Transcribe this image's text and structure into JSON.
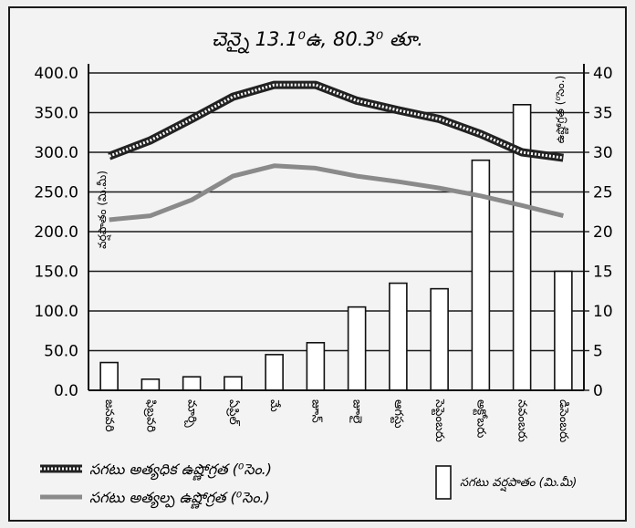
{
  "chart_data": {
    "type": "bar",
    "title": "చెన్నై 13.1⁰ఉ, 80.3⁰ తూ.",
    "categories": [
      "జనవరి",
      "ఫిబ్రవరి",
      "మార్చి",
      "ఏప్రిల్",
      "మే",
      "జూన్",
      "జూలై",
      "ఆగస్టు",
      "సెప్టెంబరు",
      "అక్టోబరు",
      "నవంబరు",
      "డిసెంబరు"
    ],
    "left_axis": {
      "label": "వర్షపాతం (మి.మీ)",
      "ylim": [
        0,
        400
      ],
      "ticks": [
        "0.0",
        "50.0",
        "100.0",
        "150.0",
        "200.0",
        "250.0",
        "300.0",
        "350.0",
        "400.0"
      ]
    },
    "right_axis": {
      "label": "ఉష్ణోగ్రత (⁰సెం.)",
      "ylim": [
        0,
        40
      ],
      "ticks": [
        "0",
        "5",
        "10",
        "15",
        "20",
        "25",
        "30",
        "35",
        "40"
      ]
    },
    "series": [
      {
        "name": "సగటు వర్షపాతం (మి.మీ)",
        "kind": "bar",
        "axis": "left",
        "values": [
          35,
          14,
          17,
          17,
          45,
          60,
          105,
          135,
          128,
          290,
          360,
          150
        ]
      },
      {
        "name": "సగటు అత్యధిక ఉష్ణోగ్రత (⁰సెం.)",
        "kind": "line",
        "axis": "right",
        "style": "hatched",
        "values": [
          29.5,
          31.5,
          34.2,
          37.0,
          38.5,
          38.5,
          36.5,
          35.3,
          34.2,
          32.3,
          30.0,
          29.3
        ]
      },
      {
        "name": "సగటు అత్యల్ప ఉష్ణోగ్రత (⁰సెం.)",
        "kind": "line",
        "axis": "right",
        "style": "grey",
        "values": [
          21.5,
          22.0,
          24.0,
          27.0,
          28.3,
          28.0,
          27.0,
          26.3,
          25.5,
          24.5,
          23.3,
          22.0
        ]
      }
    ],
    "grid": true,
    "legend_position": "bottom"
  },
  "colors": {
    "max_line": "#222222",
    "min_line": "#8a8a8a",
    "bar_fill": "#ffffff",
    "stroke": "#111111"
  }
}
